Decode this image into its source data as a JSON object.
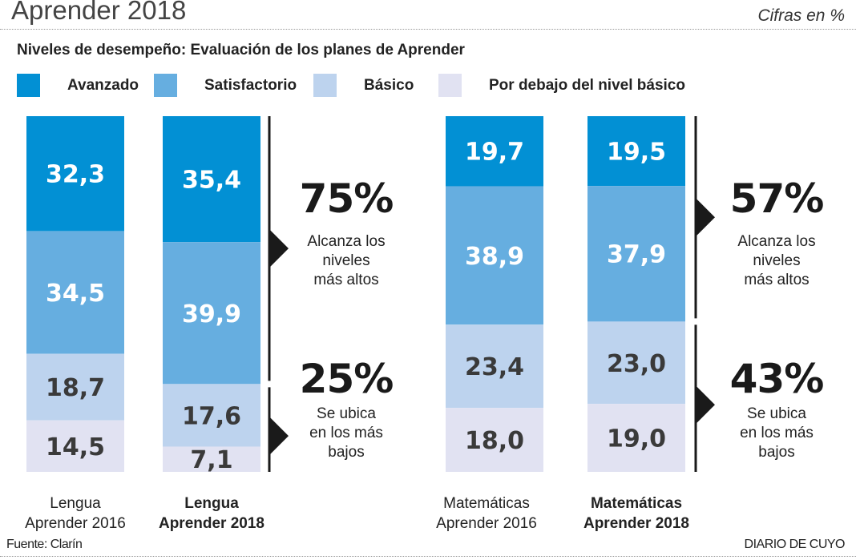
{
  "header": {
    "title": "Aprender 2018",
    "units": "Cifras en %"
  },
  "chart_data": {
    "type": "bar",
    "stacked": true,
    "orientation": "vertical",
    "title": "Niveles de desempeño: Evaluación de los planes de Aprender",
    "xlabel": "",
    "ylabel": "",
    "ylim": [
      0,
      100
    ],
    "grid": false,
    "legend_position": "top",
    "categories": [
      [
        "Lengua",
        "Aprender 2016"
      ],
      [
        "Lengua",
        "Aprender 2018"
      ],
      [
        "Matemáticas",
        "Aprender 2016"
      ],
      [
        "Matemáticas",
        "Aprender 2018"
      ]
    ],
    "category_bold": [
      false,
      true,
      false,
      true
    ],
    "series": [
      {
        "name": "Avanzado",
        "color": "#0290D4",
        "label_color": "#ffffff",
        "values": [
          32.3,
          35.4,
          19.7,
          19.5
        ],
        "labels": [
          "32,3",
          "35,4",
          "19,7",
          "19,5"
        ]
      },
      {
        "name": "Satisfactorio",
        "color": "#66AEE0",
        "label_color": "#ffffff",
        "values": [
          34.5,
          39.9,
          38.9,
          37.9
        ],
        "labels": [
          "34,5",
          "39,9",
          "38,9",
          "37,9"
        ]
      },
      {
        "name": "Básico",
        "color": "#BDD3EE",
        "label_color": "#3a3a3a",
        "values": [
          18.7,
          17.6,
          23.4,
          23.0
        ],
        "labels": [
          "18,7",
          "17,6",
          "23,4",
          "23,0"
        ]
      },
      {
        "name": "Por debajo del nivel básico",
        "color": "#E1E2F2",
        "label_color": "#3a3a3a",
        "values": [
          14.5,
          7.1,
          18.0,
          19.0
        ],
        "labels": [
          "14,5",
          "7,1",
          "18,0",
          "19,0"
        ]
      }
    ],
    "annotations": [
      {
        "group": "Lengua Aprender 2018",
        "value": "75%",
        "text": "Alcanza los\nniveles\nmás altos",
        "covers": [
          "Avanzado",
          "Satisfactorio"
        ]
      },
      {
        "group": "Lengua Aprender 2018",
        "value": "25%",
        "text": "Se ubica\nen los más\nbajos",
        "covers": [
          "Básico",
          "Por debajo del nivel básico"
        ]
      },
      {
        "group": "Matemáticas Aprender 2018",
        "value": "57%",
        "text": "Alcanza los\nniveles\nmás altos",
        "covers": [
          "Avanzado",
          "Satisfactorio"
        ]
      },
      {
        "group": "Matemáticas Aprender 2018",
        "value": "43%",
        "text": "Se ubica\nen los más\nbajos",
        "covers": [
          "Básico",
          "Por debajo del nivel básico"
        ]
      }
    ]
  },
  "footer": {
    "source": "Fuente: Clarín",
    "brand": "DIARIO DE CUYO"
  }
}
